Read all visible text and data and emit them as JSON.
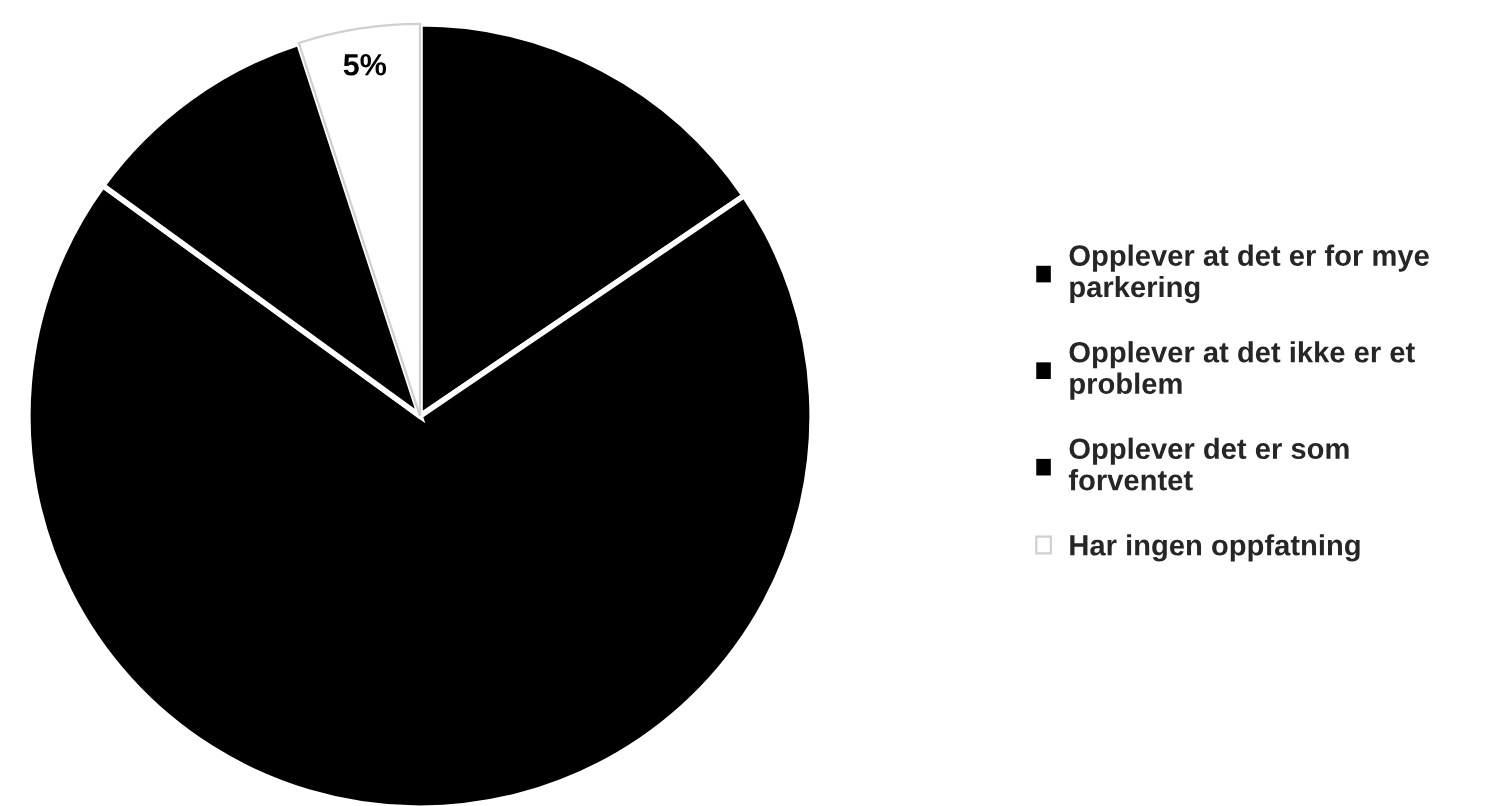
{
  "chart_data": {
    "type": "pie",
    "categories": [
      "Opplever at det er for mye\nparkering",
      "Opplever at det ikke er et\nproblem",
      "Opplever det er som\nforventet",
      "Har ingen oppfatning"
    ],
    "values": [
      15.5,
      69.5,
      10,
      5
    ],
    "colors": [
      "#000000",
      "#000000",
      "#000000",
      "#ffffff"
    ],
    "value_labels": [
      null,
      null,
      null,
      "5%"
    ],
    "legend": "right"
  }
}
